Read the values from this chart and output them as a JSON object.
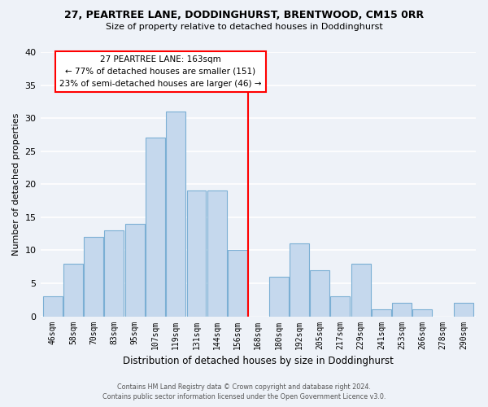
{
  "title": "27, PEARTREE LANE, DODDINGHURST, BRENTWOOD, CM15 0RR",
  "subtitle": "Size of property relative to detached houses in Doddinghurst",
  "xlabel": "Distribution of detached houses by size in Doddinghurst",
  "ylabel": "Number of detached properties",
  "bin_labels": [
    "46sqm",
    "58sqm",
    "70sqm",
    "83sqm",
    "95sqm",
    "107sqm",
    "119sqm",
    "131sqm",
    "144sqm",
    "156sqm",
    "168sqm",
    "180sqm",
    "192sqm",
    "205sqm",
    "217sqm",
    "229sqm",
    "241sqm",
    "253sqm",
    "266sqm",
    "278sqm",
    "290sqm"
  ],
  "bar_values": [
    3,
    8,
    12,
    13,
    14,
    27,
    31,
    19,
    19,
    10,
    0,
    6,
    11,
    7,
    3,
    8,
    1,
    2,
    1,
    0,
    2
  ],
  "bar_color": "#c5d8ed",
  "bar_edge_color": "#7bafd4",
  "vline_x_idx": 10,
  "vline_color": "red",
  "ylim": [
    0,
    40
  ],
  "yticks": [
    0,
    5,
    10,
    15,
    20,
    25,
    30,
    35,
    40
  ],
  "annotation_title": "27 PEARTREE LANE: 163sqm",
  "annotation_line1": "← 77% of detached houses are smaller (151)",
  "annotation_line2": "23% of semi-detached houses are larger (46) →",
  "footer1": "Contains HM Land Registry data © Crown copyright and database right 2024.",
  "footer2": "Contains public sector information licensed under the Open Government Licence v3.0.",
  "bg_color": "#eef2f8"
}
